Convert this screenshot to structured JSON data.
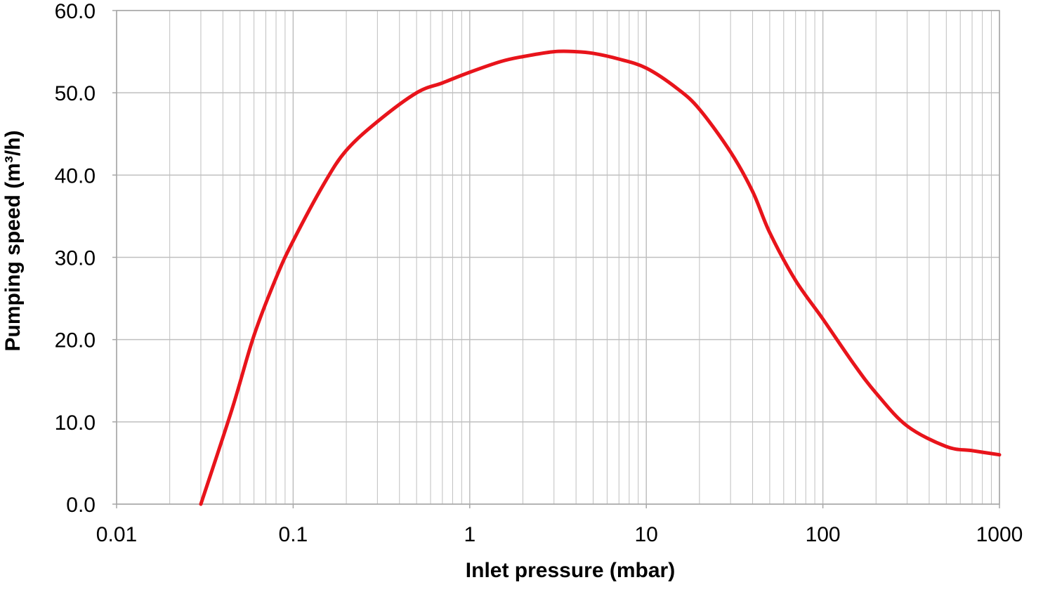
{
  "chart_data": {
    "type": "line",
    "title": "",
    "xlabel": "Inlet pressure (mbar)",
    "ylabel": "Pumping speed (m³/h)",
    "x_scale": "log",
    "xlim": [
      0.01,
      1000
    ],
    "ylim": [
      0,
      60
    ],
    "x_ticks": [
      0.01,
      0.1,
      1,
      10,
      100,
      1000
    ],
    "x_tick_labels": [
      "0.01",
      "0.1",
      "1",
      "10",
      "100",
      "1000"
    ],
    "y_ticks": [
      0,
      10,
      20,
      30,
      40,
      50,
      60
    ],
    "y_tick_labels": [
      "0.0",
      "10.0",
      "20.0",
      "30.0",
      "40.0",
      "50.0",
      "60.0"
    ],
    "grid": true,
    "legend": "none",
    "colors": {
      "series": "#e8141b",
      "grid": "#bfbfbf",
      "axis": "#a6a6a6"
    },
    "series": [
      {
        "x": [
          0.03,
          0.045,
          0.06,
          0.08,
          0.1,
          0.15,
          0.2,
          0.3,
          0.5,
          0.7,
          1,
          1.5,
          2,
          3,
          4,
          5,
          7,
          10,
          15,
          20,
          30,
          40,
          50,
          70,
          100,
          150,
          200,
          300,
          500,
          700,
          1000
        ],
        "y": [
          0,
          11.5,
          20.5,
          27.5,
          32,
          39,
          43,
          46.5,
          50,
          51.2,
          52.5,
          53.8,
          54.4,
          55,
          55,
          54.8,
          54.1,
          53,
          50.5,
          48,
          42.8,
          38,
          33,
          27.2,
          22.5,
          17,
          13.5,
          9.5,
          7,
          6.5,
          6
        ]
      }
    ]
  }
}
